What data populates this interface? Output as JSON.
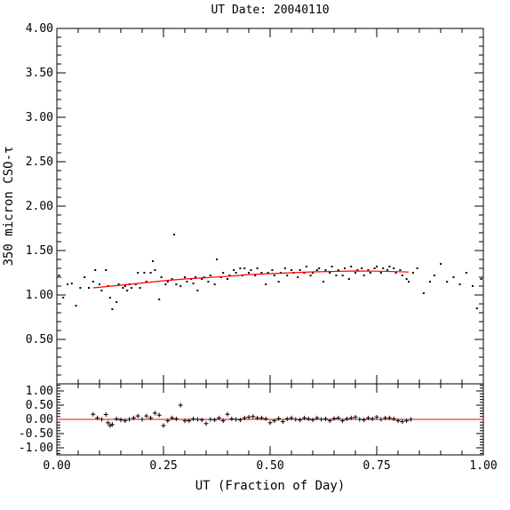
{
  "chart_data": [
    {
      "type": "scatter",
      "title": "UT Date: 20040110",
      "xlabel": "",
      "ylabel": "350 micron CSO-τ",
      "xlim": [
        0.0,
        1.0
      ],
      "ylim": [
        0.0,
        4.0
      ],
      "y_ticks": [
        1.0,
        1.5,
        2.0,
        2.5,
        3.0,
        3.5,
        4.0
      ],
      "y_tick_labels": [
        "1.00",
        "1.50",
        "2.00",
        "2.50",
        "3.00",
        "3.50",
        "4.00",
        "0.50"
      ],
      "y_tick_label_values": [
        1.0,
        1.5,
        2.0,
        2.5,
        3.0,
        3.5,
        4.0,
        0.5
      ],
      "grid": false,
      "colors": {
        "points": "#000000",
        "fit": "#ff0000"
      },
      "series": [
        {
          "marker": "dot",
          "x": [
            0.005,
            0.015,
            0.025,
            0.035,
            0.045,
            0.055,
            0.065,
            0.075,
            0.085,
            0.09,
            0.1,
            0.105,
            0.115,
            0.12,
            0.125,
            0.13,
            0.14,
            0.145,
            0.155,
            0.16,
            0.165,
            0.17,
            0.175,
            0.185,
            0.19,
            0.195,
            0.205,
            0.21,
            0.22,
            0.225,
            0.23,
            0.24,
            0.245,
            0.255,
            0.26,
            0.27,
            0.275,
            0.28,
            0.29,
            0.3,
            0.305,
            0.315,
            0.32,
            0.325,
            0.33,
            0.34,
            0.345,
            0.355,
            0.36,
            0.37,
            0.375,
            0.385,
            0.39,
            0.4,
            0.405,
            0.415,
            0.42,
            0.43,
            0.435,
            0.44,
            0.45,
            0.455,
            0.465,
            0.47,
            0.48,
            0.49,
            0.495,
            0.505,
            0.51,
            0.52,
            0.525,
            0.535,
            0.54,
            0.55,
            0.555,
            0.565,
            0.57,
            0.58,
            0.585,
            0.595,
            0.6,
            0.61,
            0.615,
            0.625,
            0.63,
            0.64,
            0.645,
            0.655,
            0.66,
            0.67,
            0.675,
            0.685,
            0.69,
            0.7,
            0.705,
            0.715,
            0.72,
            0.73,
            0.735,
            0.745,
            0.75,
            0.76,
            0.765,
            0.775,
            0.78,
            0.79,
            0.795,
            0.805,
            0.81,
            0.82,
            0.825,
            0.835,
            0.845,
            0.86,
            0.875,
            0.885,
            0.9,
            0.915,
            0.93,
            0.945,
            0.96,
            0.975,
            0.985,
            0.995
          ],
          "y": [
            1.22,
            0.97,
            1.12,
            1.13,
            0.88,
            1.08,
            1.2,
            1.08,
            1.15,
            1.28,
            1.12,
            1.05,
            1.28,
            1.1,
            0.97,
            0.84,
            0.92,
            1.12,
            1.08,
            1.1,
            1.05,
            1.12,
            1.08,
            1.12,
            1.25,
            1.08,
            1.25,
            1.15,
            1.25,
            1.38,
            1.28,
            0.95,
            1.2,
            1.12,
            1.15,
            1.18,
            1.68,
            1.12,
            1.1,
            1.2,
            1.15,
            1.18,
            1.13,
            1.2,
            1.05,
            1.18,
            1.2,
            1.15,
            1.22,
            1.12,
            1.4,
            1.2,
            1.25,
            1.18,
            1.22,
            1.28,
            1.25,
            1.3,
            1.22,
            1.3,
            1.25,
            1.28,
            1.22,
            1.3,
            1.25,
            1.12,
            1.25,
            1.28,
            1.22,
            1.15,
            1.25,
            1.3,
            1.22,
            1.28,
            1.25,
            1.2,
            1.28,
            1.25,
            1.32,
            1.22,
            1.25,
            1.28,
            1.3,
            1.15,
            1.28,
            1.25,
            1.32,
            1.22,
            1.28,
            1.22,
            1.3,
            1.18,
            1.32,
            1.25,
            1.28,
            1.3,
            1.22,
            1.28,
            1.25,
            1.3,
            1.32,
            1.25,
            1.3,
            1.28,
            1.32,
            1.3,
            1.25,
            1.28,
            1.22,
            1.18,
            1.15,
            1.25,
            1.3,
            1.02,
            1.15,
            1.22,
            1.35,
            1.15,
            1.2,
            1.12,
            1.25,
            1.1,
            0.85,
            1.18
          ]
        },
        {
          "marker": "line",
          "x": [
            0.085,
            0.15,
            0.2,
            0.25,
            0.3,
            0.35,
            0.4,
            0.45,
            0.5,
            0.55,
            0.6,
            0.65,
            0.7,
            0.75,
            0.8,
            0.825
          ],
          "y": [
            1.08,
            1.11,
            1.135,
            1.16,
            1.18,
            1.195,
            1.21,
            1.23,
            1.24,
            1.25,
            1.26,
            1.265,
            1.27,
            1.268,
            1.262,
            1.258
          ]
        }
      ]
    },
    {
      "type": "scatter",
      "title": "",
      "xlabel": "UT (Fraction of Day)",
      "ylabel": "",
      "xlim": [
        0.0,
        1.0
      ],
      "ylim": [
        -1.25,
        1.25
      ],
      "y_ticks": [
        -1.0,
        -0.5,
        0.0,
        0.5,
        1.0
      ],
      "y_tick_labels": [
        "-1.00",
        "-0.50",
        "0.00",
        "0.50",
        "1.00"
      ],
      "x_ticks": [
        0.0,
        0.25,
        0.5,
        0.75,
        1.0
      ],
      "x_tick_labels": [
        "0.00",
        "0.25",
        "0.50",
        "0.75",
        "1.00"
      ],
      "grid": false,
      "colors": {
        "points": "#000000",
        "zero_line": "#ff0000"
      },
      "zero_line": 0.0,
      "series": [
        {
          "marker": "plus",
          "x": [
            0.085,
            0.095,
            0.105,
            0.115,
            0.12,
            0.125,
            0.13,
            0.14,
            0.15,
            0.16,
            0.17,
            0.18,
            0.19,
            0.2,
            0.21,
            0.22,
            0.23,
            0.24,
            0.25,
            0.26,
            0.27,
            0.28,
            0.29,
            0.3,
            0.31,
            0.32,
            0.33,
            0.34,
            0.35,
            0.36,
            0.37,
            0.38,
            0.39,
            0.4,
            0.41,
            0.42,
            0.43,
            0.44,
            0.45,
            0.46,
            0.47,
            0.48,
            0.49,
            0.5,
            0.51,
            0.52,
            0.53,
            0.54,
            0.55,
            0.56,
            0.57,
            0.58,
            0.59,
            0.6,
            0.61,
            0.62,
            0.63,
            0.64,
            0.65,
            0.66,
            0.67,
            0.68,
            0.69,
            0.7,
            0.71,
            0.72,
            0.73,
            0.74,
            0.75,
            0.76,
            0.77,
            0.78,
            0.79,
            0.8,
            0.81,
            0.82,
            0.83
          ],
          "y": [
            0.18,
            0.05,
            0.0,
            0.17,
            -0.12,
            -0.22,
            -0.18,
            0.02,
            -0.02,
            -0.05,
            0.0,
            0.05,
            0.12,
            0.0,
            0.12,
            0.05,
            0.22,
            0.15,
            -0.22,
            -0.05,
            0.05,
            0.02,
            0.5,
            -0.05,
            -0.05,
            0.02,
            0.0,
            -0.02,
            -0.15,
            0.0,
            -0.02,
            0.05,
            -0.05,
            0.18,
            0.02,
            0.0,
            -0.02,
            0.05,
            0.08,
            0.1,
            0.05,
            0.05,
            0.02,
            -0.12,
            -0.05,
            0.03,
            -0.08,
            0.02,
            0.05,
            0.0,
            -0.02,
            0.05,
            0.02,
            -0.02,
            0.05,
            0.0,
            0.02,
            -0.05,
            0.03,
            0.05,
            -0.05,
            0.02,
            0.05,
            0.08,
            0.0,
            -0.02,
            0.05,
            0.02,
            0.08,
            0.0,
            0.05,
            0.05,
            0.02,
            -0.05,
            -0.08,
            -0.05,
            0.0
          ]
        }
      ]
    }
  ]
}
